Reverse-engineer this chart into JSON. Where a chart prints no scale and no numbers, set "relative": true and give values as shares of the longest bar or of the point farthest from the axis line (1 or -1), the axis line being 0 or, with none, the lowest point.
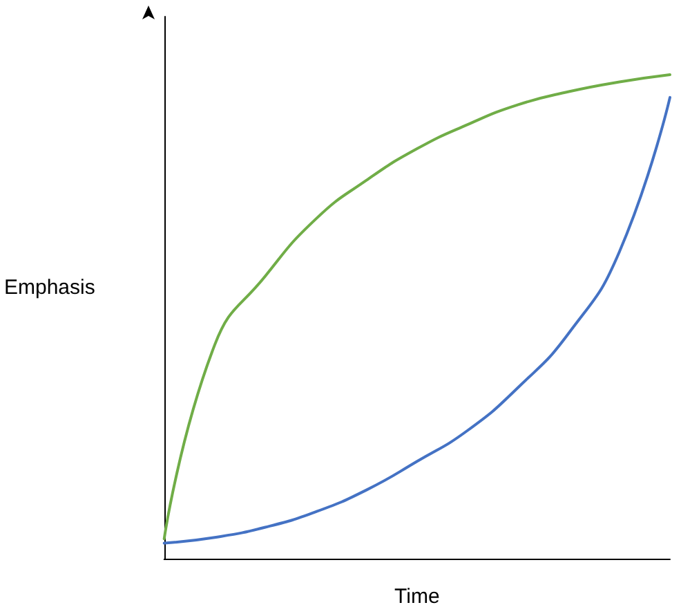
{
  "chart_data": {
    "type": "line",
    "relative": true,
    "xlabel": "Time",
    "ylabel": "Emphasis",
    "categories": [
      null,
      null,
      null,
      null,
      null,
      null,
      null,
      null,
      null,
      null,
      null
    ],
    "series": [
      {
        "color": "#70ad47",
        "values": [
          0.041,
          0.442,
          0.584,
          0.702,
          0.782,
          0.847,
          0.897,
          0.938,
          0.965,
          0.985,
          1.0
        ]
      },
      {
        "color": "#4472c4",
        "values": [
          0.032,
          0.044,
          0.065,
          0.097,
          0.142,
          0.201,
          0.265,
          0.354,
          0.466,
          0.634,
          0.953
        ]
      }
    ],
    "grid": false,
    "marker": "none",
    "line_style": "solid"
  }
}
